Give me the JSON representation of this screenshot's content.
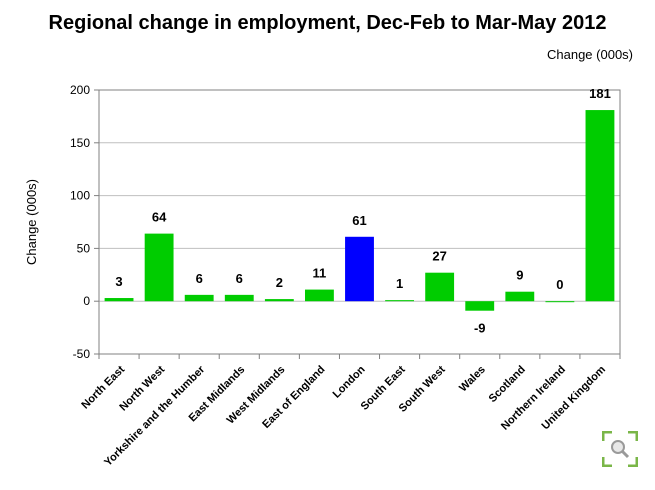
{
  "header": {
    "title": "Regional change in employment, Dec-Feb to Mar-May 2012",
    "unit_label": "Change (000s)"
  },
  "chart_data": {
    "type": "bar",
    "categories": [
      "North East",
      "North West",
      "Yorkshire and the Humber",
      "East Midlands",
      "West Midlands",
      "East of England",
      "London",
      "South East",
      "South West",
      "Wales",
      "Scotland",
      "Northern Ireland",
      "United Kingdom"
    ],
    "values": [
      3,
      64,
      6,
      6,
      2,
      11,
      61,
      1,
      27,
      -9,
      9,
      0,
      181
    ],
    "data_labels": [
      "3",
      "64",
      "6",
      "6",
      "2",
      "11",
      "61",
      "1",
      "27",
      "-9",
      "9",
      "0",
      "181"
    ],
    "colors": [
      "#00cc00",
      "#00cc00",
      "#00cc00",
      "#00cc00",
      "#00cc00",
      "#00cc00",
      "#0000ff",
      "#00cc00",
      "#00cc00",
      "#00cc00",
      "#00cc00",
      "#00cc00",
      "#00cc00"
    ],
    "ylabel": "Change (000s)",
    "ylim": [
      -50,
      200
    ],
    "yticks": [
      -50,
      0,
      50,
      100,
      150,
      200
    ],
    "grid": true
  },
  "logo": {
    "icon": "magnifier-logo-icon",
    "color": "#7ab648"
  }
}
